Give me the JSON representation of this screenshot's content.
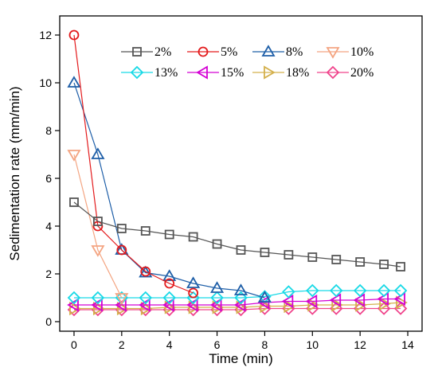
{
  "chart_data": {
    "type": "line",
    "xlabel": "Time (min)",
    "ylabel": "Sedimentation rate (mm/min)",
    "xlim": [
      -0.6,
      14.6
    ],
    "ylim": [
      -0.4,
      12.8
    ],
    "x_ticks": [
      0,
      2,
      4,
      6,
      8,
      10,
      12,
      14
    ],
    "y_ticks": [
      0,
      2,
      4,
      6,
      8,
      10,
      12
    ],
    "legend": {
      "placement": "top-right",
      "columns": 4
    },
    "grid": false,
    "series": [
      {
        "name": "2%",
        "color": "#555555",
        "marker": "square",
        "x": [
          0,
          1,
          2,
          3,
          4,
          5,
          6,
          7,
          8,
          9,
          10,
          11,
          12,
          13,
          13.7
        ],
        "y": [
          5.0,
          4.2,
          3.9,
          3.8,
          3.65,
          3.55,
          3.25,
          3.0,
          2.9,
          2.8,
          2.7,
          2.6,
          2.5,
          2.4,
          2.3
        ]
      },
      {
        "name": "5%",
        "color": "#e31a1c",
        "marker": "circle",
        "x": [
          0,
          1,
          2,
          3,
          4,
          5
        ],
        "y": [
          12.0,
          4.0,
          3.0,
          2.1,
          1.6,
          1.2
        ]
      },
      {
        "name": "8%",
        "color": "#1f5fa8",
        "marker": "triangle-up",
        "x": [
          0,
          1,
          2,
          3,
          4,
          5,
          6,
          7,
          8
        ],
        "y": [
          10.0,
          7.0,
          3.0,
          2.05,
          1.9,
          1.6,
          1.4,
          1.3,
          1.0
        ]
      },
      {
        "name": "10%",
        "color": "#f4a582",
        "marker": "triangle-down",
        "x": [
          0,
          1,
          2
        ],
        "y": [
          7.0,
          3.0,
          1.0
        ]
      },
      {
        "name": "13%",
        "color": "#17d9e6",
        "marker": "diamond",
        "x": [
          0,
          1,
          2,
          3,
          4,
          5,
          6,
          7,
          8,
          9,
          10,
          11,
          12,
          13,
          13.7
        ],
        "y": [
          1.0,
          1.0,
          1.0,
          1.0,
          1.0,
          1.0,
          1.0,
          1.0,
          1.05,
          1.25,
          1.3,
          1.3,
          1.3,
          1.3,
          1.3
        ]
      },
      {
        "name": "15%",
        "color": "#d400d4",
        "marker": "triangle-left",
        "x": [
          0,
          1,
          2,
          3,
          4,
          5,
          6,
          7,
          8,
          9,
          10,
          11,
          12,
          13,
          13.7
        ],
        "y": [
          0.7,
          0.7,
          0.7,
          0.7,
          0.7,
          0.7,
          0.7,
          0.7,
          0.8,
          0.85,
          0.85,
          0.9,
          0.9,
          0.95,
          0.95
        ]
      },
      {
        "name": "18%",
        "color": "#d4b04c",
        "marker": "triangle-right",
        "x": [
          0,
          1,
          2,
          3,
          4,
          5,
          6,
          7,
          8,
          9,
          10,
          11,
          12,
          13,
          13.7
        ],
        "y": [
          0.55,
          0.55,
          0.55,
          0.55,
          0.6,
          0.6,
          0.6,
          0.6,
          0.65,
          0.65,
          0.7,
          0.7,
          0.7,
          0.75,
          0.8
        ]
      },
      {
        "name": "20%",
        "color": "#f0458c",
        "marker": "diamond",
        "x": [
          0,
          1,
          2,
          3,
          4,
          5,
          6,
          7,
          8,
          9,
          10,
          11,
          12,
          13,
          13.7
        ],
        "y": [
          0.5,
          0.5,
          0.5,
          0.5,
          0.5,
          0.5,
          0.5,
          0.5,
          0.55,
          0.55,
          0.55,
          0.55,
          0.55,
          0.55,
          0.55
        ]
      }
    ]
  }
}
